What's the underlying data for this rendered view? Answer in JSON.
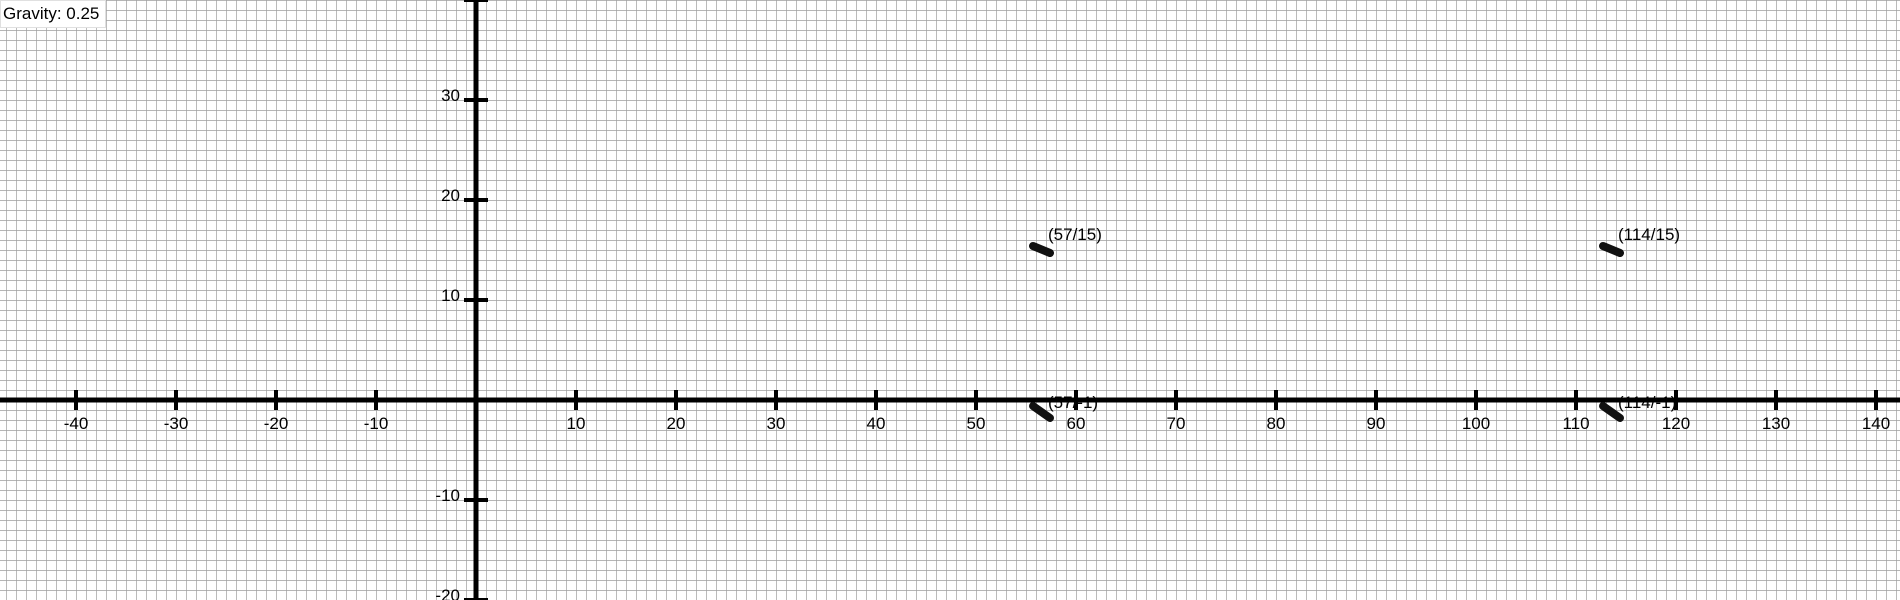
{
  "gravity_label": "Gravity: 0.25",
  "chart_data": {
    "type": "scatter",
    "title": "",
    "xlabel": "",
    "ylabel": "",
    "xlim": [
      -47.5,
      142
    ],
    "ylim": [
      -20,
      40
    ],
    "grid": true,
    "x_ticks": [
      "-40",
      "-30",
      "-20",
      "-10",
      "10",
      "20",
      "30",
      "40",
      "50",
      "60",
      "70",
      "80",
      "90",
      "100",
      "110",
      "120",
      "130",
      "140"
    ],
    "y_ticks": [
      "30",
      "20",
      "10",
      "-10",
      "-20"
    ],
    "points": [
      {
        "label": "(57/15)",
        "x": 57,
        "y": 15
      },
      {
        "label": "(114/15)",
        "x": 114,
        "y": 15
      },
      {
        "label": "(57/-1)",
        "x": 57,
        "y": -1
      },
      {
        "label": "(114/-1)",
        "x": 114,
        "y": -1
      }
    ],
    "colors": {
      "axis": "#000000",
      "grid": "#9e9e9e",
      "marker": "#111111"
    }
  }
}
